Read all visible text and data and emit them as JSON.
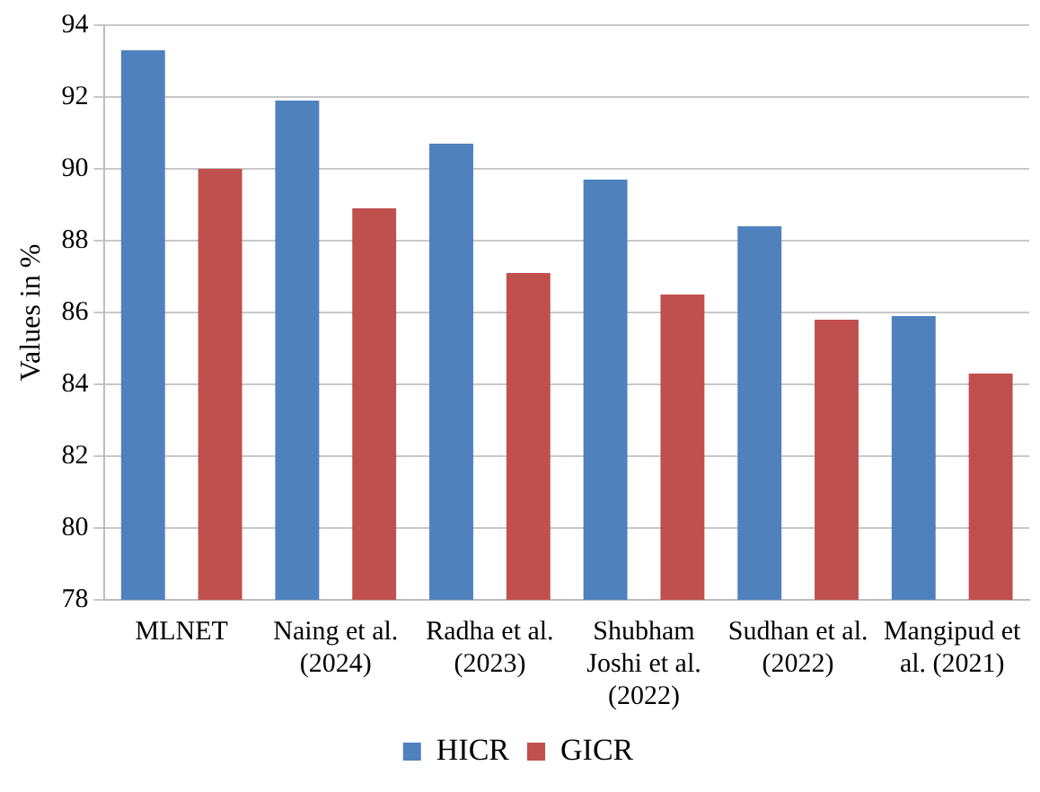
{
  "chart_data": {
    "type": "bar",
    "ylabel": "Values in %",
    "categories": [
      "MLNET",
      "Naing et al. (2024)",
      "Radha et al. (2023)",
      "Shubham Joshi et al. (2022)",
      "Sudhan et al. (2022)",
      "Mangipud et al. (2021)"
    ],
    "series": [
      {
        "name": "HICR",
        "color": "#4f81bd",
        "values": [
          93.3,
          91.9,
          90.7,
          89.7,
          88.4,
          85.9
        ]
      },
      {
        "name": "GICR",
        "color": "#c0504d",
        "values": [
          90.0,
          88.9,
          87.1,
          86.5,
          85.8,
          84.3
        ]
      }
    ],
    "ylim": [
      78,
      94
    ],
    "yticks": [
      78,
      80,
      82,
      84,
      86,
      88,
      90,
      92,
      94
    ],
    "grid": "y",
    "legend": "bottom"
  }
}
